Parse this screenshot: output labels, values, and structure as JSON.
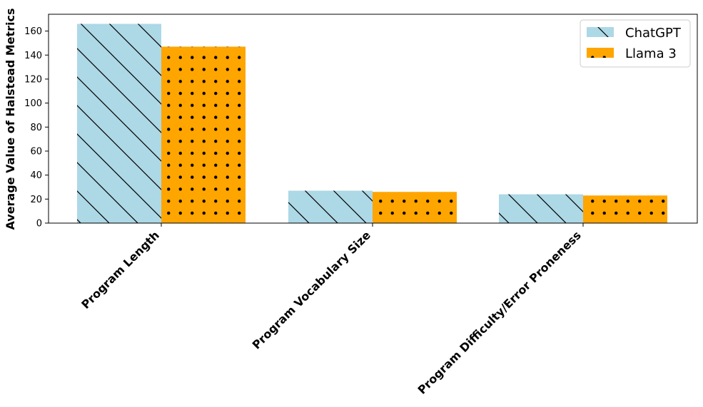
{
  "chart_data": {
    "type": "bar",
    "title": "",
    "xlabel": "",
    "ylabel": "Average Value of Halstead Metrics",
    "categories": [
      "Program Length",
      "Program Vocabulary Size",
      "Program Difficulty/Error Proneness"
    ],
    "series": [
      {
        "name": "ChatGPT",
        "values": [
          166,
          27,
          24
        ],
        "color": "#add8e6",
        "pattern": "diagonal-hatch"
      },
      {
        "name": "Llama 3",
        "values": [
          147,
          26,
          23
        ],
        "color": "#ffa500",
        "pattern": "dot-hatch"
      }
    ],
    "ylim": [
      0,
      174
    ],
    "yticks": [
      0,
      20,
      40,
      60,
      80,
      100,
      120,
      140,
      160
    ],
    "grid": false,
    "legend_position": "top-right"
  }
}
